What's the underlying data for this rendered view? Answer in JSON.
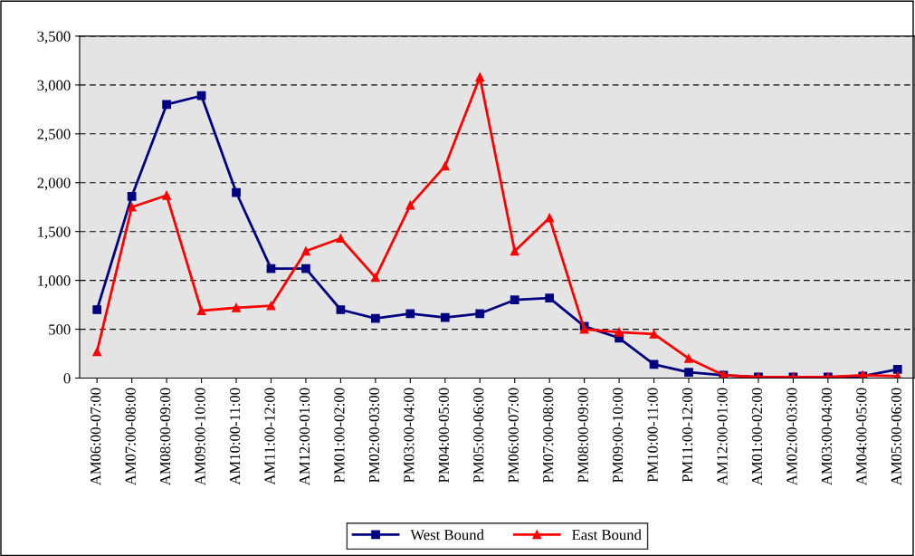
{
  "chart_data": {
    "type": "line",
    "categories": [
      "AM06:00-07:00",
      "AM07:00-08:00",
      "AM08:00-09:00",
      "AM09:00-10:00",
      "AM10:00-11:00",
      "AM11:00-12:00",
      "AM12:00-01:00",
      "PM01:00-02:00",
      "PM02:00-03:00",
      "PM03:00-04:00",
      "PM04:00-05:00",
      "PM05:00-06:00",
      "PM06:00-07:00",
      "PM07:00-08:00",
      "PM08:00-09:00",
      "PM09:00-10:00",
      "PM10:00-11:00",
      "PM11:00-12:00",
      "AM12:00-01:00",
      "AM01:00-02:00",
      "AM02:00-03:00",
      "AM03:00-04:00",
      "AM04:00-05:00",
      "AM05:00-06:00"
    ],
    "series": [
      {
        "name": "West Bound",
        "color": "#000080",
        "marker": "square",
        "values": [
          700,
          1860,
          2800,
          2890,
          1900,
          1120,
          1120,
          700,
          610,
          660,
          620,
          660,
          800,
          820,
          530,
          410,
          140,
          60,
          30,
          10,
          10,
          10,
          20,
          90
        ]
      },
      {
        "name": "East Bound",
        "color": "#ff0000",
        "marker": "triangle",
        "values": [
          270,
          1750,
          1870,
          690,
          720,
          740,
          1300,
          1430,
          1030,
          1770,
          2170,
          3080,
          1300,
          1640,
          500,
          470,
          450,
          200,
          30,
          10,
          10,
          10,
          30,
          20
        ]
      }
    ],
    "ylim": [
      0,
      3500
    ],
    "yticks": [
      0,
      500,
      {
        "value": 1000,
        "label": "1,000"
      },
      {
        "value": 1500,
        "label": "1,500"
      },
      {
        "value": 2000,
        "label": "2,000"
      },
      {
        "value": 2500,
        "label": "2,500"
      },
      {
        "value": 3000,
        "label": "3,000"
      },
      {
        "value": 3500,
        "label": "3,500"
      }
    ],
    "grid": "y",
    "line_style": "solid",
    "legend": "bottom"
  }
}
